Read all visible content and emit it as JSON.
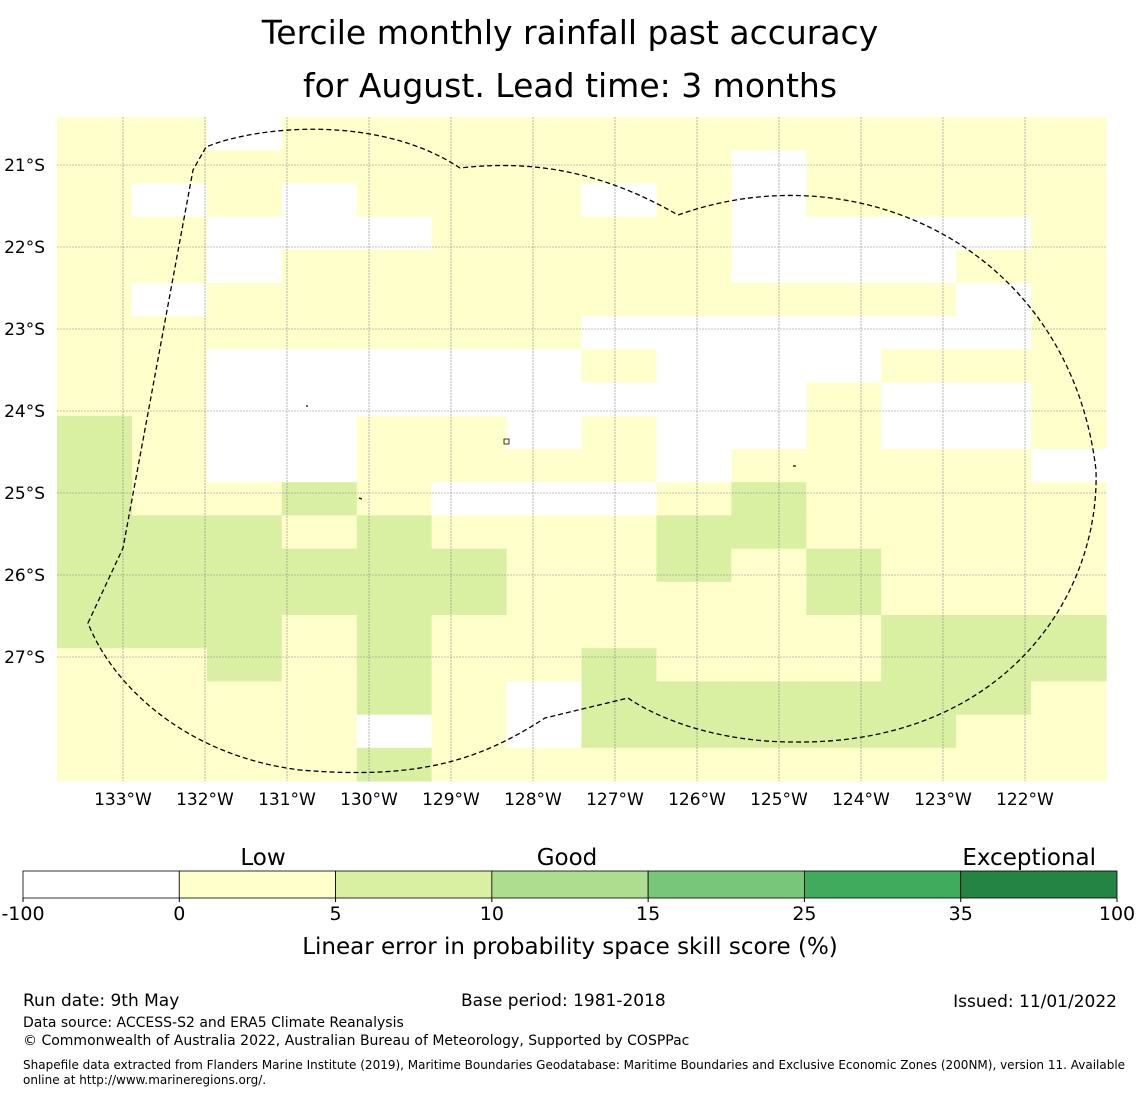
{
  "title_line1": "Tercile monthly rainfall past accuracy",
  "title_line2": "for August. Lead time: 3 months",
  "map": {
    "lon_labels": [
      "133°W",
      "132°W",
      "131°W",
      "130°W",
      "129°W",
      "128°W",
      "127°W",
      "126°W",
      "125°W",
      "124°W",
      "123°W",
      "122°W"
    ],
    "lat_labels": [
      "21°S",
      "22°S",
      "23°S",
      "24°S",
      "25°S",
      "26°S",
      "27°S"
    ],
    "colors": [
      "#ffffff",
      "#ffffcc",
      "#d9f0a3",
      "#addd8e",
      "#78c679",
      "#41ab5d",
      "#238443"
    ],
    "grid_rows": [
      "11011111111111",
      "11111111101111",
      "10101110101111",
      "11000111100001",
      "11011111100011",
      "10111111111101",
      "11111110000001",
      "11000001000111",
      "11000000001001",
      "21001101001001",
      "21001111011110",
      "21121000121111",
      "22212111221111",
      "22222211212111",
      "22222211112111",
      "22212111111222",
      "11212112111222",
      "11112102222221",
      "11110102222211",
      "11112111111111"
    ]
  },
  "colorbar": {
    "ticks": [
      "-100",
      "0",
      "5",
      "10",
      "15",
      "25",
      "35",
      "100"
    ],
    "category_labels": [
      "Low",
      "Good",
      "Exceptional"
    ],
    "label": "Linear error in probability space skill score (%)"
  },
  "footer": {
    "run_date": "Run date: 9th May",
    "base_period": "Base period: 1981-2018",
    "issued": "Issued: 11/01/2022",
    "data_source": "Data source: ACCESS-S2 and ERA5 Climate Reanalysis",
    "copyright": "© Commonwealth of Australia 2022, Australian Bureau of Meteorology, Supported by COSPPac",
    "shapefile_line1": "Shapefile data extracted from Flanders Marine Institute (2019), Maritime Boundaries Geodatabase: Maritime Boundaries and Exclusive Economic Zones (200NM), version 11. Available",
    "shapefile_line2": "online at http://www.marineregions.org/."
  }
}
